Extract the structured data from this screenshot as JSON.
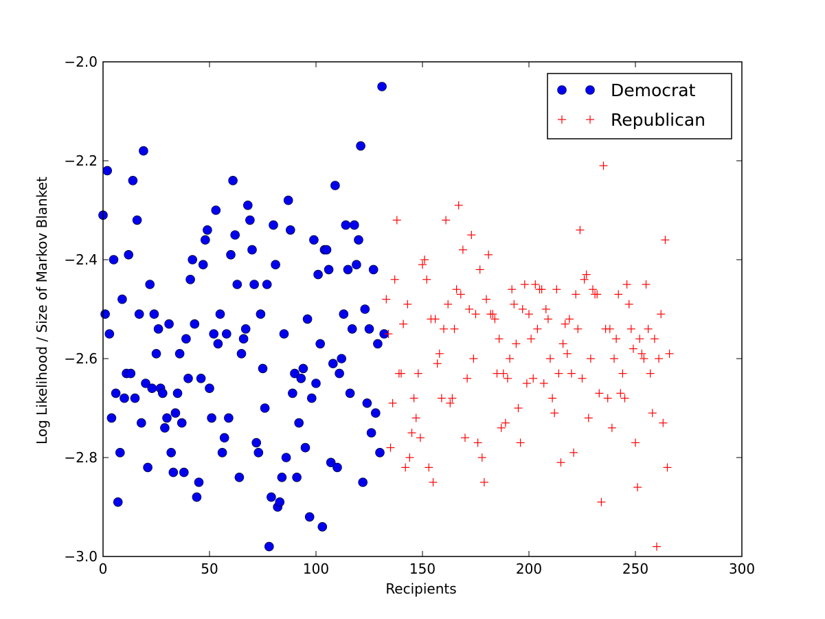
{
  "chart_data": {
    "type": "scatter",
    "title": "",
    "xlabel": "Recipients",
    "ylabel": "Log Likelihood / Size of Markov Blanket",
    "xlim": [
      0,
      300
    ],
    "ylim": [
      -3.0,
      -2.0
    ],
    "xticks": [
      0,
      50,
      100,
      150,
      200,
      250,
      300
    ],
    "yticks": [
      -3.0,
      -2.8,
      -2.6,
      -2.4,
      -2.2,
      -2.0
    ],
    "xtick_labels": [
      "0",
      "50",
      "100",
      "150",
      "200",
      "250",
      "300"
    ],
    "ytick_labels": [
      "−3.0",
      "−2.8",
      "−2.6",
      "−2.4",
      "−2.2",
      "−2.0"
    ],
    "grid": false,
    "legend_position": "top-right",
    "series": [
      {
        "name": "Democrat",
        "marker": "circle",
        "color": "#0000ee",
        "points": [
          [
            0,
            -2.31
          ],
          [
            1,
            -2.51
          ],
          [
            2,
            -2.22
          ],
          [
            3,
            -2.55
          ],
          [
            4,
            -2.72
          ],
          [
            5,
            -2.4
          ],
          [
            6,
            -2.67
          ],
          [
            7,
            -2.89
          ],
          [
            8,
            -2.79
          ],
          [
            9,
            -2.48
          ],
          [
            10,
            -2.68
          ],
          [
            11,
            -2.63
          ],
          [
            12,
            -2.39
          ],
          [
            13,
            -2.63
          ],
          [
            14,
            -2.24
          ],
          [
            15,
            -2.68
          ],
          [
            16,
            -2.32
          ],
          [
            17,
            -2.51
          ],
          [
            18,
            -2.73
          ],
          [
            19,
            -2.18
          ],
          [
            20,
            -2.65
          ],
          [
            21,
            -2.82
          ],
          [
            22,
            -2.45
          ],
          [
            23,
            -2.66
          ],
          [
            24,
            -2.51
          ],
          [
            25,
            -2.59
          ],
          [
            26,
            -2.54
          ],
          [
            27,
            -2.66
          ],
          [
            28,
            -2.67
          ],
          [
            29,
            -2.74
          ],
          [
            30,
            -2.72
          ],
          [
            31,
            -2.53
          ],
          [
            32,
            -2.79
          ],
          [
            33,
            -2.83
          ],
          [
            34,
            -2.71
          ],
          [
            35,
            -2.67
          ],
          [
            36,
            -2.59
          ],
          [
            37,
            -2.73
          ],
          [
            38,
            -2.83
          ],
          [
            39,
            -2.56
          ],
          [
            40,
            -2.64
          ],
          [
            41,
            -2.44
          ],
          [
            42,
            -2.4
          ],
          [
            43,
            -2.53
          ],
          [
            44,
            -2.88
          ],
          [
            45,
            -2.85
          ],
          [
            46,
            -2.64
          ],
          [
            47,
            -2.41
          ],
          [
            48,
            -2.36
          ],
          [
            49,
            -2.34
          ],
          [
            50,
            -2.66
          ],
          [
            51,
            -2.72
          ],
          [
            52,
            -2.55
          ],
          [
            53,
            -2.3
          ],
          [
            54,
            -2.57
          ],
          [
            55,
            -2.51
          ],
          [
            56,
            -2.79
          ],
          [
            57,
            -2.76
          ],
          [
            58,
            -2.55
          ],
          [
            59,
            -2.72
          ],
          [
            60,
            -2.39
          ],
          [
            61,
            -2.24
          ],
          [
            62,
            -2.35
          ],
          [
            63,
            -2.45
          ],
          [
            64,
            -2.84
          ],
          [
            65,
            -2.59
          ],
          [
            66,
            -2.56
          ],
          [
            67,
            -2.54
          ],
          [
            68,
            -2.29
          ],
          [
            69,
            -2.32
          ],
          [
            70,
            -2.38
          ],
          [
            71,
            -2.45
          ],
          [
            72,
            -2.77
          ],
          [
            73,
            -2.79
          ],
          [
            74,
            -2.51
          ],
          [
            75,
            -2.62
          ],
          [
            76,
            -2.7
          ],
          [
            77,
            -2.45
          ],
          [
            78,
            -2.98
          ],
          [
            79,
            -2.88
          ],
          [
            80,
            -2.33
          ],
          [
            81,
            -2.41
          ],
          [
            82,
            -2.9
          ],
          [
            83,
            -2.89
          ],
          [
            84,
            -2.84
          ],
          [
            85,
            -2.55
          ],
          [
            86,
            -2.8
          ],
          [
            87,
            -2.28
          ],
          [
            88,
            -2.34
          ],
          [
            89,
            -2.67
          ],
          [
            90,
            -2.63
          ],
          [
            91,
            -2.84
          ],
          [
            92,
            -2.73
          ],
          [
            93,
            -2.64
          ],
          [
            94,
            -2.62
          ],
          [
            95,
            -2.78
          ],
          [
            96,
            -2.52
          ],
          [
            97,
            -2.92
          ],
          [
            98,
            -2.68
          ],
          [
            99,
            -2.36
          ],
          [
            100,
            -2.65
          ],
          [
            101,
            -2.43
          ],
          [
            102,
            -2.57
          ],
          [
            103,
            -2.94
          ],
          [
            104,
            -2.38
          ],
          [
            105,
            -2.38
          ],
          [
            106,
            -2.42
          ],
          [
            107,
            -2.81
          ],
          [
            108,
            -2.61
          ],
          [
            109,
            -2.25
          ],
          [
            110,
            -2.82
          ],
          [
            111,
            -2.63
          ],
          [
            112,
            -2.6
          ],
          [
            113,
            -2.51
          ],
          [
            114,
            -2.33
          ],
          [
            115,
            -2.42
          ],
          [
            116,
            -2.67
          ],
          [
            117,
            -2.54
          ],
          [
            118,
            -2.33
          ],
          [
            119,
            -2.41
          ],
          [
            120,
            -2.36
          ],
          [
            121,
            -2.17
          ],
          [
            122,
            -2.85
          ],
          [
            123,
            -2.5
          ],
          [
            124,
            -2.69
          ],
          [
            125,
            -2.54
          ],
          [
            126,
            -2.75
          ],
          [
            127,
            -2.42
          ],
          [
            128,
            -2.71
          ],
          [
            129,
            -2.57
          ],
          [
            130,
            -2.79
          ],
          [
            131,
            -2.05
          ],
          [
            132,
            -2.55
          ]
        ]
      },
      {
        "name": "Republican",
        "marker": "plus",
        "color": "#ff0000",
        "points": [
          [
            133,
            -2.48
          ],
          [
            134,
            -2.55
          ],
          [
            135,
            -2.78
          ],
          [
            136,
            -2.69
          ],
          [
            137,
            -2.44
          ],
          [
            138,
            -2.32
          ],
          [
            139,
            -2.63
          ],
          [
            140,
            -2.63
          ],
          [
            141,
            -2.53
          ],
          [
            142,
            -2.82
          ],
          [
            143,
            -2.49
          ],
          [
            144,
            -2.8
          ],
          [
            145,
            -2.75
          ],
          [
            146,
            -2.68
          ],
          [
            147,
            -2.72
          ],
          [
            148,
            -2.63
          ],
          [
            149,
            -2.76
          ],
          [
            150,
            -2.41
          ],
          [
            151,
            -2.4
          ],
          [
            152,
            -2.44
          ],
          [
            153,
            -2.82
          ],
          [
            154,
            -2.52
          ],
          [
            155,
            -2.85
          ],
          [
            156,
            -2.52
          ],
          [
            157,
            -2.61
          ],
          [
            158,
            -2.59
          ],
          [
            159,
            -2.68
          ],
          [
            160,
            -2.54
          ],
          [
            161,
            -2.32
          ],
          [
            162,
            -2.49
          ],
          [
            163,
            -2.69
          ],
          [
            164,
            -2.68
          ],
          [
            165,
            -2.54
          ],
          [
            166,
            -2.46
          ],
          [
            167,
            -2.29
          ],
          [
            168,
            -2.47
          ],
          [
            169,
            -2.38
          ],
          [
            170,
            -2.76
          ],
          [
            171,
            -2.64
          ],
          [
            172,
            -2.5
          ],
          [
            173,
            -2.35
          ],
          [
            174,
            -2.6
          ],
          [
            175,
            -2.51
          ],
          [
            176,
            -2.77
          ],
          [
            177,
            -2.42
          ],
          [
            178,
            -2.8
          ],
          [
            179,
            -2.85
          ],
          [
            180,
            -2.48
          ],
          [
            181,
            -2.39
          ],
          [
            182,
            -2.51
          ],
          [
            183,
            -2.51
          ],
          [
            184,
            -2.52
          ],
          [
            185,
            -2.63
          ],
          [
            186,
            -2.56
          ],
          [
            187,
            -2.74
          ],
          [
            188,
            -2.63
          ],
          [
            189,
            -2.73
          ],
          [
            190,
            -2.64
          ],
          [
            191,
            -2.6
          ],
          [
            192,
            -2.46
          ],
          [
            193,
            -2.49
          ],
          [
            194,
            -2.57
          ],
          [
            195,
            -2.7
          ],
          [
            196,
            -2.77
          ],
          [
            197,
            -2.5
          ],
          [
            198,
            -2.45
          ],
          [
            199,
            -2.65
          ],
          [
            200,
            -2.51
          ],
          [
            201,
            -2.56
          ],
          [
            202,
            -2.64
          ],
          [
            203,
            -2.45
          ],
          [
            204,
            -2.54
          ],
          [
            205,
            -2.46
          ],
          [
            206,
            -2.46
          ],
          [
            207,
            -2.65
          ],
          [
            208,
            -2.5
          ],
          [
            209,
            -2.52
          ],
          [
            210,
            -2.6
          ],
          [
            211,
            -2.68
          ],
          [
            212,
            -2.71
          ],
          [
            213,
            -2.46
          ],
          [
            214,
            -2.63
          ],
          [
            215,
            -2.81
          ],
          [
            216,
            -2.57
          ],
          [
            217,
            -2.53
          ],
          [
            218,
            -2.59
          ],
          [
            219,
            -2.52
          ],
          [
            220,
            -2.63
          ],
          [
            221,
            -2.79
          ],
          [
            222,
            -2.47
          ],
          [
            223,
            -2.54
          ],
          [
            224,
            -2.34
          ],
          [
            225,
            -2.64
          ],
          [
            226,
            -2.44
          ],
          [
            227,
            -2.43
          ],
          [
            228,
            -2.72
          ],
          [
            229,
            -2.6
          ],
          [
            230,
            -2.46
          ],
          [
            231,
            -2.47
          ],
          [
            232,
            -2.47
          ],
          [
            233,
            -2.67
          ],
          [
            234,
            -2.89
          ],
          [
            235,
            -2.21
          ],
          [
            236,
            -2.54
          ],
          [
            237,
            -2.68
          ],
          [
            238,
            -2.54
          ],
          [
            239,
            -2.74
          ],
          [
            240,
            -2.6
          ],
          [
            241,
            -2.56
          ],
          [
            242,
            -2.47
          ],
          [
            243,
            -2.67
          ],
          [
            244,
            -2.63
          ],
          [
            245,
            -2.68
          ],
          [
            246,
            -2.45
          ],
          [
            247,
            -2.49
          ],
          [
            248,
            -2.54
          ],
          [
            249,
            -2.58
          ],
          [
            250,
            -2.77
          ],
          [
            251,
            -2.86
          ],
          [
            252,
            -2.56
          ],
          [
            253,
            -2.59
          ],
          [
            254,
            -2.6
          ],
          [
            255,
            -2.45
          ],
          [
            256,
            -2.54
          ],
          [
            257,
            -2.63
          ],
          [
            258,
            -2.71
          ],
          [
            259,
            -2.56
          ],
          [
            260,
            -2.98
          ],
          [
            261,
            -2.6
          ],
          [
            262,
            -2.51
          ],
          [
            263,
            -2.73
          ],
          [
            264,
            -2.36
          ],
          [
            265,
            -2.82
          ],
          [
            266,
            -2.59
          ]
        ]
      }
    ]
  }
}
